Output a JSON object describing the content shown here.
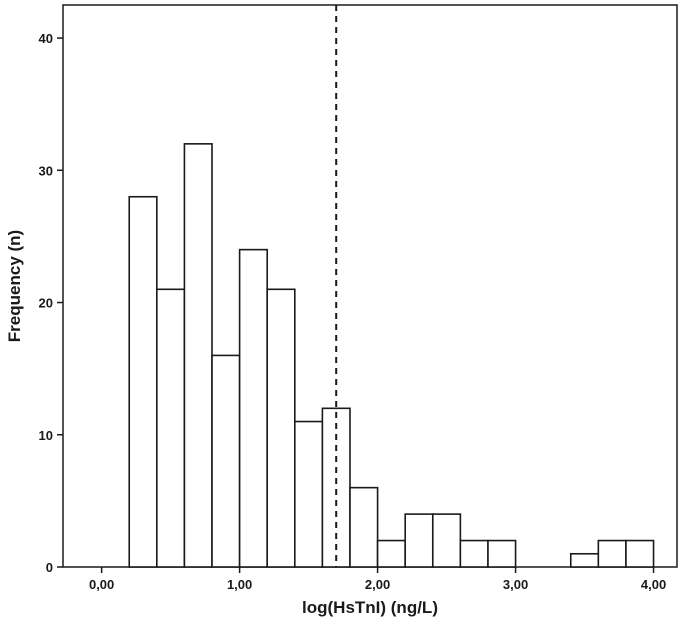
{
  "chart_data": {
    "type": "bar",
    "subtype": "histogram",
    "xlabel": "log(HsTnI) (ng/L)",
    "ylabel": "Frequency (n)",
    "xlim": [
      -0.28,
      4.17
    ],
    "ylim": [
      0,
      42.5
    ],
    "x_ticks": [
      0,
      1,
      2,
      3,
      4
    ],
    "x_tick_labels": [
      "0,00",
      "1,00",
      "2,00",
      "3,00",
      "4,00"
    ],
    "y_ticks": [
      0,
      10,
      20,
      30,
      40
    ],
    "y_tick_labels": [
      "0",
      "10",
      "20",
      "30",
      "40"
    ],
    "bin_width": 0.2,
    "bins": [
      {
        "start": 0.2,
        "end": 0.4,
        "count": 28
      },
      {
        "start": 0.4,
        "end": 0.6,
        "count": 21
      },
      {
        "start": 0.6,
        "end": 0.8,
        "count": 32
      },
      {
        "start": 0.8,
        "end": 1.0,
        "count": 16
      },
      {
        "start": 1.0,
        "end": 1.2,
        "count": 24
      },
      {
        "start": 1.2,
        "end": 1.4,
        "count": 21
      },
      {
        "start": 1.4,
        "end": 1.6,
        "count": 11
      },
      {
        "start": 1.6,
        "end": 1.8,
        "count": 12
      },
      {
        "start": 1.8,
        "end": 2.0,
        "count": 6
      },
      {
        "start": 2.0,
        "end": 2.2,
        "count": 2
      },
      {
        "start": 2.2,
        "end": 2.4,
        "count": 4
      },
      {
        "start": 2.4,
        "end": 2.6,
        "count": 4
      },
      {
        "start": 2.6,
        "end": 2.8,
        "count": 2
      },
      {
        "start": 2.8,
        "end": 3.0,
        "count": 2
      },
      {
        "start": 3.0,
        "end": 3.2,
        "count": 0
      },
      {
        "start": 3.2,
        "end": 3.4,
        "count": 0
      },
      {
        "start": 3.4,
        "end": 3.6,
        "count": 1
      },
      {
        "start": 3.6,
        "end": 3.8,
        "count": 2
      },
      {
        "start": 3.8,
        "end": 4.0,
        "count": 2
      }
    ],
    "reference_line": {
      "x": 1.7,
      "style": "dashed"
    },
    "grid": false,
    "legend": "none",
    "colors": {
      "bar_fill": "#ffffff",
      "bar_stroke": "#1a1a1a",
      "axis": "#1a1a1a"
    }
  }
}
